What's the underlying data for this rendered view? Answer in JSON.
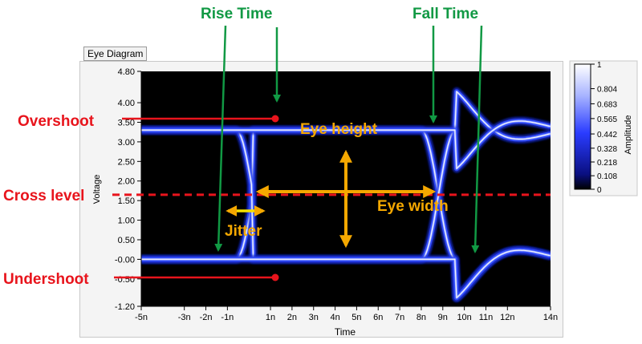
{
  "panel_label": "Eye Diagram",
  "chart_data": {
    "type": "heatmap",
    "description_kind": "eye diagram (signal persistence plot)",
    "xlabel": "Time",
    "ylabel": "Voltage",
    "xlim": [
      -5,
      14
    ],
    "ylim": [
      -1.2,
      4.8
    ],
    "x_ticks": [
      "-5n",
      "-3n",
      "-2n",
      "-1n",
      "1n",
      "2n",
      "3n",
      "4n",
      "5n",
      "6n",
      "7n",
      "8n",
      "9n",
      "10n",
      "11n",
      "12n",
      "14n"
    ],
    "x_tick_values": [
      -5,
      -3,
      -2,
      -1,
      1,
      2,
      3,
      4,
      5,
      6,
      7,
      8,
      9,
      10,
      11,
      12,
      14
    ],
    "y_ticks": [
      "4.80",
      "4.00",
      "3.50",
      "3.00",
      "2.50",
      "2.00",
      "1.50",
      "1.00",
      "0.50",
      "-0.00",
      "-0.50",
      "-1.20"
    ],
    "y_tick_values": [
      4.8,
      4.0,
      3.5,
      3.0,
      2.5,
      2.0,
      1.5,
      1.0,
      0.5,
      0.0,
      -0.5,
      -1.2
    ],
    "colorbar": {
      "label": "Amplitude",
      "ticks": [
        "1",
        "0.804",
        "0.683",
        "0.565",
        "0.442",
        "0.328",
        "0.218",
        "0.108",
        "0"
      ],
      "tick_values": [
        1,
        0.804,
        0.683,
        0.565,
        0.442,
        0.328,
        0.218,
        0.108,
        0
      ],
      "low_color": "#000000",
      "high_color": "#ffffff",
      "mid_color": "#2233ff"
    },
    "signal": {
      "high_level": 3.3,
      "low_level": 0.0,
      "overshoot_peak": 4.3,
      "undershoot_trough": -1.0,
      "crossings_at": [
        0.2,
        8.8
      ],
      "unit_interval": 8.6
    },
    "annotations": {
      "rise_time": "Rise Time",
      "fall_time": "Fall Time",
      "overshoot": "Overshoot",
      "undershoot": "Undershoot",
      "cross_level": "Cross level",
      "eye_height": "Eye height",
      "eye_width": "Eye width",
      "jitter": "Jitter"
    },
    "colors": {
      "annotation_red": "#e8141c",
      "annotation_green": "#119944",
      "annotation_orange": "#f5a800",
      "plot_background": "#000000"
    },
    "grid": false
  }
}
